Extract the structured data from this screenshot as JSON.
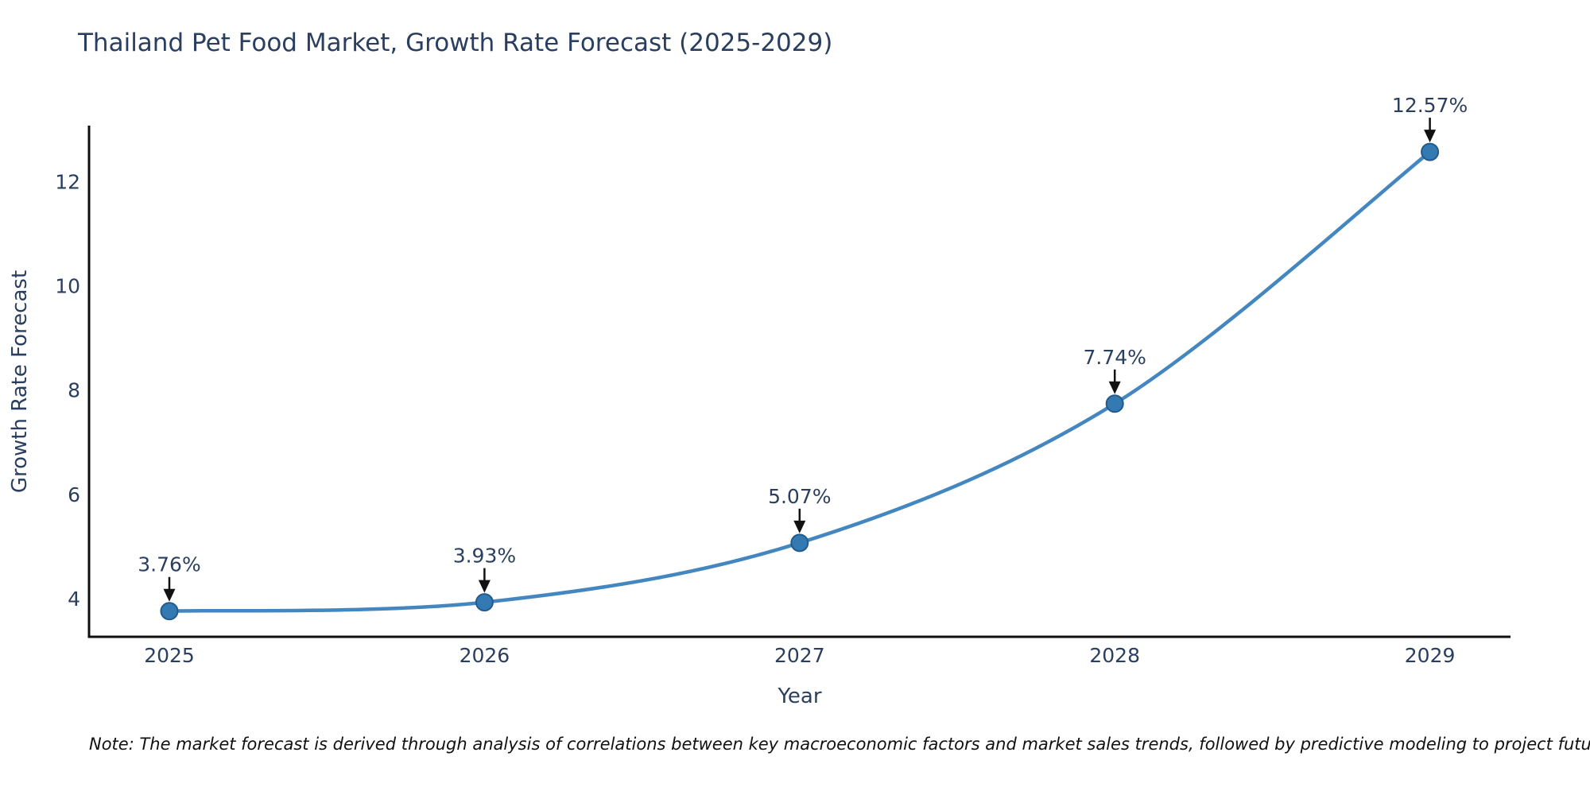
{
  "title": "Thailand Pet Food Market, Growth Rate Forecast (2025-2029)",
  "note": "Note: The market forecast is derived through analysis of correlations between key macroeconomic factors and market sales trends, followed by predictive modeling to project future sales",
  "chart_data": {
    "type": "line",
    "title": "Thailand Pet Food Market, Growth Rate Forecast (2025-2029)",
    "xlabel": "Year",
    "ylabel": "Growth Rate Forecast",
    "x": [
      2025,
      2026,
      2027,
      2028,
      2029
    ],
    "series": [
      {
        "name": "Growth Rate Forecast",
        "values": [
          3.76,
          3.93,
          5.07,
          7.74,
          12.57
        ]
      }
    ],
    "point_labels": [
      "3.76%",
      "3.93%",
      "5.07%",
      "7.74%",
      "12.57%"
    ],
    "xticks": [
      "2025",
      "2026",
      "2027",
      "2028",
      "2029"
    ],
    "yticks": [
      4,
      6,
      8,
      10,
      12
    ],
    "ylim": [
      3.28,
      13.05
    ],
    "grid": false,
    "legend": "none",
    "curve": "spline",
    "colors": {
      "line": "#4487c0",
      "marker_fill": "#3379b2",
      "marker_edge": "#235a8c",
      "axis": "#0f0f0f",
      "text": "#2a3f5f",
      "annotation_text": "#2a3f5f",
      "arrow": "#111111"
    }
  }
}
